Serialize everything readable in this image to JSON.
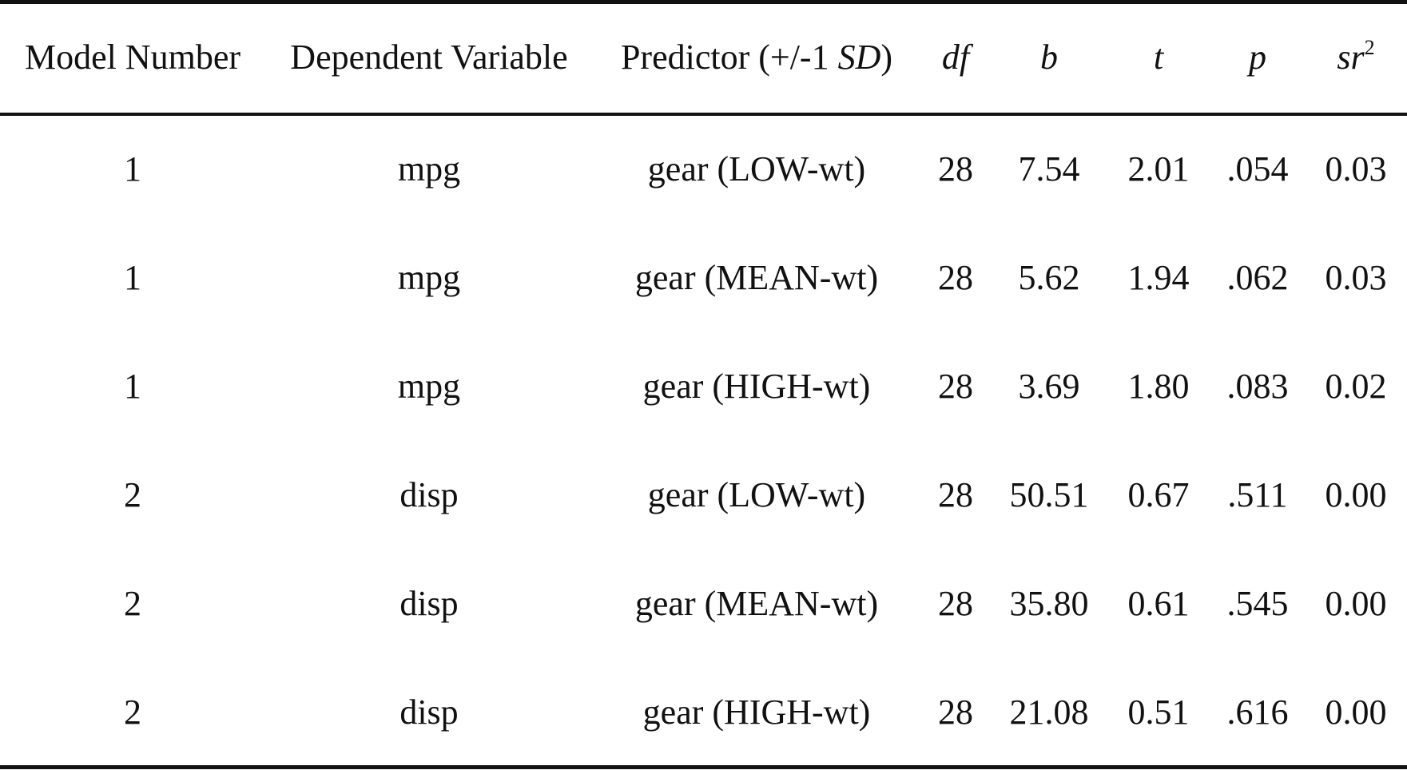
{
  "table": {
    "headers": {
      "model": "Model Number",
      "dv": "Dependent Variable",
      "predictor_prefix": "Predictor (+/-1 ",
      "predictor_sd": "SD",
      "predictor_suffix": ")",
      "df": "df",
      "b": "b",
      "t": "t",
      "p": "p",
      "sr_base": "sr",
      "sr_sup": "2"
    },
    "rows": [
      {
        "model": "1",
        "dv": "mpg",
        "predictor": "gear (LOW-wt)",
        "df": "28",
        "b": "7.54",
        "t": "2.01",
        "p": ".054",
        "sr2": "0.03"
      },
      {
        "model": "1",
        "dv": "mpg",
        "predictor": "gear (MEAN-wt)",
        "df": "28",
        "b": "5.62",
        "t": "1.94",
        "p": ".062",
        "sr2": "0.03"
      },
      {
        "model": "1",
        "dv": "mpg",
        "predictor": "gear (HIGH-wt)",
        "df": "28",
        "b": "3.69",
        "t": "1.80",
        "p": ".083",
        "sr2": "0.02"
      },
      {
        "model": "2",
        "dv": "disp",
        "predictor": "gear (LOW-wt)",
        "df": "28",
        "b": "50.51",
        "t": "0.67",
        "p": ".511",
        "sr2": "0.00"
      },
      {
        "model": "2",
        "dv": "disp",
        "predictor": "gear (MEAN-wt)",
        "df": "28",
        "b": "35.80",
        "t": "0.61",
        "p": ".545",
        "sr2": "0.00"
      },
      {
        "model": "2",
        "dv": "disp",
        "predictor": "gear (HIGH-wt)",
        "df": "28",
        "b": "21.08",
        "t": "0.51",
        "p": ".616",
        "sr2": "0.00"
      }
    ]
  }
}
